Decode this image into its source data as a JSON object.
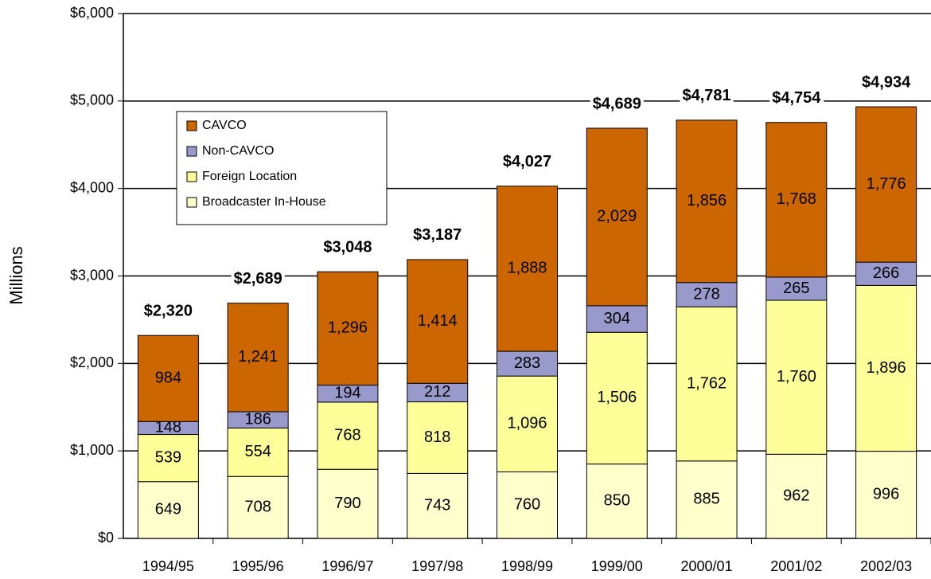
{
  "chart_data": {
    "type": "stacked_bar",
    "y_label": "Millions",
    "categories": [
      "1994/95",
      "1995/96",
      "1996/97",
      "1997/98",
      "1998/99",
      "1999/00",
      "2000/01",
      "2001/02",
      "2002/03"
    ],
    "series": [
      {
        "name": "Broadcaster In-House",
        "color": "#ffffcc",
        "values": [
          649,
          708,
          790,
          743,
          760,
          850,
          885,
          962,
          996
        ],
        "value_labels": [
          "649",
          "708",
          "790",
          "743",
          "760",
          "850",
          "885",
          "962",
          "996"
        ]
      },
      {
        "name": "Foreign Location",
        "color": "#ffff99",
        "values": [
          539,
          554,
          768,
          818,
          1096,
          1506,
          1762,
          1760,
          1896
        ],
        "value_labels": [
          "539",
          "554",
          "768",
          "818",
          "1,096",
          "1,506",
          "1,762",
          "1,760",
          "1,896"
        ]
      },
      {
        "name": "Non-CAVCO",
        "color": "#9999cc",
        "values": [
          148,
          186,
          194,
          212,
          283,
          304,
          278,
          265,
          266
        ],
        "value_labels": [
          "148",
          "186",
          "194",
          "212",
          "283",
          "304",
          "278",
          "265",
          "266"
        ]
      },
      {
        "name": "CAVCO",
        "color": "#cc6600",
        "values": [
          984,
          1241,
          1296,
          1414,
          1888,
          2029,
          1856,
          1768,
          1776
        ],
        "value_labels": [
          "984",
          "1,241",
          "1,296",
          "1,414",
          "1,888",
          "2,029",
          "1,856",
          "1,768",
          "1,776"
        ]
      }
    ],
    "totals": {
      "values": [
        2320,
        2689,
        3048,
        3187,
        4027,
        4689,
        4781,
        4754,
        4934
      ],
      "value_labels": [
        "$2,320",
        "$2,689",
        "$3,048",
        "$3,187",
        "$4,027",
        "$4,689",
        "$4,781",
        "$4,754",
        "$4,934"
      ]
    },
    "ylim": [
      0,
      6000
    ],
    "yticks": [
      {
        "value": 0,
        "label": "$0"
      },
      {
        "value": 1000,
        "label": "$1,000"
      },
      {
        "value": 2000,
        "label": "$2,000"
      },
      {
        "value": 3000,
        "label": "$3,000"
      },
      {
        "value": 4000,
        "label": "$4,000"
      },
      {
        "value": 5000,
        "label": "$5,000"
      },
      {
        "value": 6000,
        "label": "$6,000"
      }
    ],
    "grid": true,
    "legend": "upper-left"
  }
}
